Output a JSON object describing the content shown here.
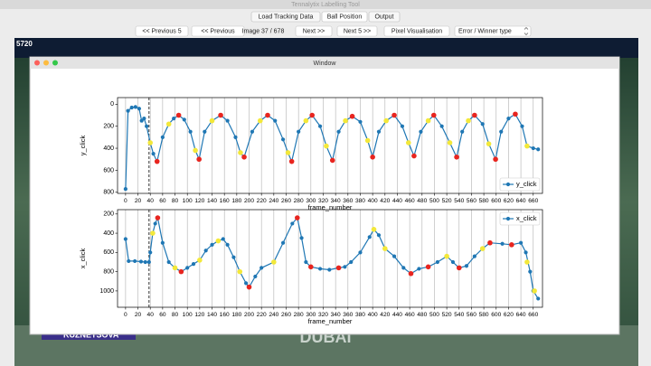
{
  "app_title": "Tennalytix Labelling Tool",
  "tabs": [
    "Load Tracking Data",
    "Ball Position",
    "Output"
  ],
  "toolbar": {
    "buttons": [
      "<< Previous 5",
      "<< Previous",
      "Next >>",
      "Next 5 >>",
      "Pixel Visualisation"
    ],
    "image_counter": "Image 37 / 678",
    "dropdown": "Error / Winner type"
  },
  "frame_id": "5720",
  "background_texts": [
    "KUZNETSOVA",
    "DUBAI"
  ],
  "window_title": "Window",
  "chart_data": [
    {
      "type": "line",
      "xlabel": "frame_number",
      "ylabel": "y_click",
      "xlim": [
        -13,
        675
      ],
      "ylim": [
        -60,
        810
      ],
      "inverted_y": true,
      "xticks": [
        0,
        20,
        40,
        60,
        80,
        100,
        120,
        140,
        160,
        180,
        200,
        220,
        240,
        260,
        280,
        300,
        320,
        340,
        360,
        380,
        400,
        420,
        440,
        460,
        480,
        500,
        520,
        540,
        560,
        580,
        600,
        620,
        640,
        660
      ],
      "yticks": [
        0,
        200,
        400,
        600,
        800
      ],
      "grid": "x",
      "vline": 38,
      "legend": "lower right",
      "series": [
        {
          "name": "y_click",
          "color": "#1f77b4",
          "line": true,
          "x": [
            0,
            4,
            10,
            16,
            22,
            26,
            30,
            34,
            40,
            45,
            51,
            60,
            70,
            78,
            86,
            95,
            105,
            113,
            119,
            128,
            140,
            154,
            165,
            178,
            186,
            192,
            205,
            218,
            230,
            242,
            255,
            263,
            269,
            280,
            292,
            302,
            315,
            325,
            335,
            345,
            356,
            367,
            380,
            392,
            400,
            410,
            422,
            435,
            448,
            458,
            467,
            478,
            490,
            499,
            512,
            525,
            536,
            545,
            555,
            565,
            578,
            588,
            599,
            608,
            620,
            631,
            642,
            650,
            660,
            668
          ],
          "values": [
            770,
            60,
            30,
            25,
            40,
            150,
            130,
            200,
            350,
            450,
            520,
            300,
            180,
            130,
            100,
            140,
            250,
            420,
            500,
            250,
            150,
            100,
            150,
            300,
            440,
            480,
            250,
            150,
            100,
            150,
            320,
            440,
            520,
            250,
            150,
            100,
            200,
            380,
            510,
            250,
            150,
            110,
            160,
            330,
            480,
            250,
            150,
            100,
            200,
            350,
            470,
            250,
            150,
            100,
            200,
            350,
            480,
            250,
            150,
            100,
            180,
            360,
            500,
            250,
            130,
            90,
            200,
            380,
            400,
            410
          ]
        },
        {
          "color": "#e8251f",
          "line": false,
          "x": [
            51,
            86,
            119,
            154,
            192,
            230,
            269,
            302,
            335,
            367,
            400,
            435,
            467,
            499,
            536,
            565,
            599,
            631
          ],
          "values": [
            520,
            100,
            500,
            100,
            480,
            100,
            520,
            100,
            510,
            110,
            480,
            100,
            470,
            100,
            480,
            100,
            500,
            90
          ]
        },
        {
          "color": "#f3e83a",
          "line": false,
          "x": [
            40,
            70,
            113,
            140,
            186,
            218,
            263,
            292,
            325,
            356,
            392,
            422,
            458,
            490,
            525,
            555,
            588,
            650
          ],
          "values": [
            350,
            180,
            420,
            150,
            440,
            150,
            440,
            150,
            380,
            150,
            330,
            150,
            350,
            150,
            350,
            150,
            360,
            380
          ]
        }
      ]
    },
    {
      "type": "line",
      "xlabel": "frame_number",
      "ylabel": "x_click",
      "xlim": [
        -13,
        675
      ],
      "ylim": [
        155,
        1170
      ],
      "inverted_y": true,
      "xticks": [
        0,
        20,
        40,
        60,
        80,
        100,
        120,
        140,
        160,
        180,
        200,
        220,
        240,
        260,
        280,
        300,
        320,
        340,
        360,
        380,
        400,
        420,
        440,
        460,
        480,
        500,
        520,
        540,
        560,
        580,
        600,
        620,
        640,
        660
      ],
      "yticks": [
        200,
        400,
        600,
        800,
        1000
      ],
      "grid": "x",
      "vline": 38,
      "legend": "upper right",
      "series": [
        {
          "name": "x_click",
          "color": "#1f77b4",
          "line": true,
          "x": [
            0,
            5,
            15,
            25,
            32,
            38,
            40,
            44,
            48,
            52,
            60,
            70,
            80,
            90,
            100,
            110,
            120,
            130,
            140,
            150,
            158,
            165,
            175,
            185,
            195,
            200,
            210,
            220,
            240,
            255,
            270,
            278,
            285,
            292,
            300,
            315,
            330,
            345,
            355,
            365,
            380,
            395,
            402,
            410,
            420,
            435,
            450,
            462,
            475,
            490,
            505,
            520,
            530,
            540,
            552,
            565,
            578,
            590,
            610,
            625,
            640,
            648,
            655,
            660,
            668
          ],
          "values": [
            460,
            690,
            690,
            695,
            700,
            700,
            600,
            400,
            300,
            240,
            500,
            700,
            760,
            800,
            760,
            720,
            680,
            580,
            520,
            480,
            460,
            520,
            650,
            800,
            920,
            960,
            850,
            760,
            700,
            500,
            300,
            240,
            450,
            700,
            750,
            770,
            780,
            760,
            750,
            700,
            600,
            440,
            360,
            420,
            560,
            640,
            760,
            820,
            770,
            750,
            700,
            640,
            700,
            760,
            740,
            640,
            560,
            500,
            510,
            520,
            500,
            600,
            800,
            1000,
            1080
          ]
        },
        {
          "color": "#e8251f",
          "line": false,
          "x": [
            52,
            90,
            200,
            278,
            300,
            345,
            462,
            490,
            540,
            590,
            625
          ],
          "values": [
            240,
            800,
            960,
            240,
            750,
            760,
            820,
            750,
            760,
            500,
            520
          ]
        },
        {
          "color": "#f3e83a",
          "line": false,
          "x": [
            44,
            80,
            120,
            150,
            185,
            240,
            402,
            420,
            520,
            578,
            650,
            662
          ],
          "values": [
            400,
            760,
            680,
            480,
            800,
            700,
            360,
            560,
            640,
            560,
            700,
            1000
          ]
        }
      ]
    }
  ]
}
